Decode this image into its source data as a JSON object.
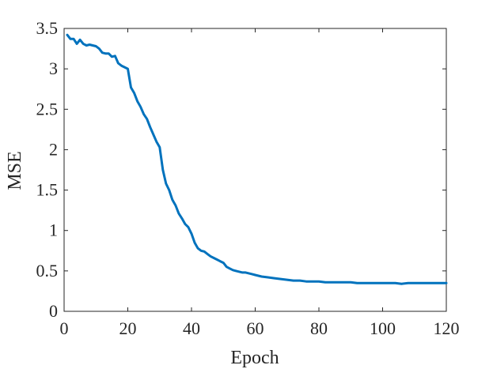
{
  "chart_data": {
    "type": "line",
    "title": "",
    "xlabel": "Epoch",
    "ylabel": "MSE",
    "xlim": [
      0,
      120
    ],
    "ylim": [
      0,
      3.5
    ],
    "xticks": [
      0,
      20,
      40,
      60,
      80,
      100,
      120
    ],
    "xtick_labels": [
      "0",
      "20",
      "40",
      "60",
      "80",
      "100",
      "120"
    ],
    "yticks": [
      0,
      0.5,
      1,
      1.5,
      2,
      2.5,
      3,
      3.5
    ],
    "ytick_labels": [
      "0",
      "0.5",
      "1",
      "1.5",
      "2",
      "2.5",
      "3",
      "3.5"
    ],
    "grid": false,
    "box": true,
    "line_color": "#0072BD",
    "axis_color": "#262626",
    "series": [
      {
        "x": [
          1,
          2,
          3,
          4,
          5,
          6,
          7,
          8,
          9,
          10,
          11,
          12,
          13,
          14,
          15,
          16,
          17,
          18,
          19,
          20,
          21,
          22,
          23,
          24,
          25,
          26,
          27,
          28,
          29,
          30,
          31,
          32,
          33,
          34,
          35,
          36,
          37,
          38,
          39,
          40,
          41,
          42,
          43,
          44,
          45,
          46,
          47,
          48,
          49,
          50,
          51,
          52,
          53,
          54,
          55,
          56,
          57,
          58,
          59,
          60,
          62,
          64,
          66,
          68,
          70,
          72,
          74,
          76,
          78,
          80,
          82,
          84,
          86,
          88,
          90,
          92,
          94,
          96,
          98,
          100,
          102,
          104,
          106,
          108,
          110,
          112,
          114,
          116,
          118,
          120
        ],
        "y": [
          3.42,
          3.37,
          3.37,
          3.31,
          3.36,
          3.31,
          3.29,
          3.3,
          3.29,
          3.28,
          3.25,
          3.2,
          3.19,
          3.19,
          3.15,
          3.16,
          3.07,
          3.04,
          3.02,
          3.0,
          2.77,
          2.7,
          2.6,
          2.53,
          2.44,
          2.38,
          2.28,
          2.19,
          2.1,
          2.03,
          1.75,
          1.58,
          1.5,
          1.38,
          1.31,
          1.21,
          1.15,
          1.08,
          1.04,
          0.96,
          0.85,
          0.78,
          0.75,
          0.74,
          0.71,
          0.68,
          0.66,
          0.64,
          0.62,
          0.6,
          0.55,
          0.53,
          0.51,
          0.5,
          0.49,
          0.48,
          0.48,
          0.47,
          0.46,
          0.45,
          0.43,
          0.42,
          0.41,
          0.4,
          0.39,
          0.38,
          0.38,
          0.37,
          0.37,
          0.37,
          0.36,
          0.36,
          0.36,
          0.36,
          0.36,
          0.35,
          0.35,
          0.35,
          0.35,
          0.35,
          0.35,
          0.35,
          0.34,
          0.35,
          0.35,
          0.35,
          0.35,
          0.35,
          0.35,
          0.35
        ]
      }
    ]
  }
}
